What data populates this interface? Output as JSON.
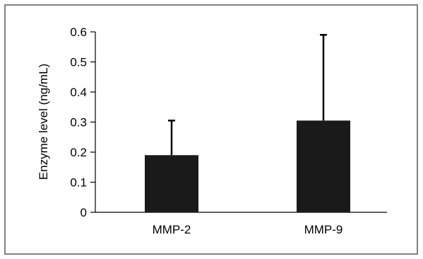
{
  "chart_data": {
    "type": "bar",
    "title": "",
    "xlabel": "",
    "ylabel": "Enzyme level (ng/mL)",
    "ylim": [
      0,
      0.6
    ],
    "yticks": [
      0,
      0.1,
      0.2,
      0.3,
      0.4,
      0.5,
      0.6
    ],
    "ytick_labels": [
      "0",
      "0.1",
      "0.2",
      "0.3",
      "0.4",
      "0.5",
      "0.6"
    ],
    "categories": [
      "MMP-2",
      "MMP-9"
    ],
    "values": [
      0.19,
      0.305
    ],
    "error_upper": [
      0.305,
      0.59
    ],
    "bar_color": "#1a1a1a",
    "grid": false,
    "legend": "none"
  }
}
